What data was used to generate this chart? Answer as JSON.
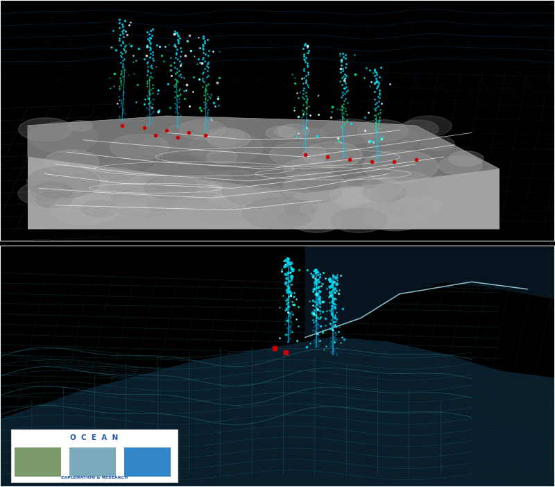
{
  "fig_width": 8.0,
  "fig_height": 7.02,
  "dpi": 100,
  "top_panel": {
    "bg_color": "#05101a",
    "seafloor_color": "#808080",
    "contour_color": "#cccccc",
    "plume_colors": [
      "#00bfff",
      "#00ff7f",
      "#00e5ff"
    ],
    "red_dot_color": "#cc0000",
    "grid_color": "#1a3a4a"
  },
  "bottom_panel": {
    "bg_color": "#020c14",
    "grid_color": "#1a4a5a",
    "plume_colors": [
      "#00bfff",
      "#00ff7f"
    ],
    "red_dot_color": "#cc0000"
  },
  "logo": {
    "text_ocean": "O  C  E  A  N",
    "text_sub": "EXPLØRATION & RESEARCH",
    "bg_color": "#ffffff",
    "text_color_ocean": "#2255aa",
    "box1_color": "#7a9a6a",
    "box2_color": "#7aaabb",
    "box3_color": "#3388cc"
  },
  "border_color": "#ffffff"
}
